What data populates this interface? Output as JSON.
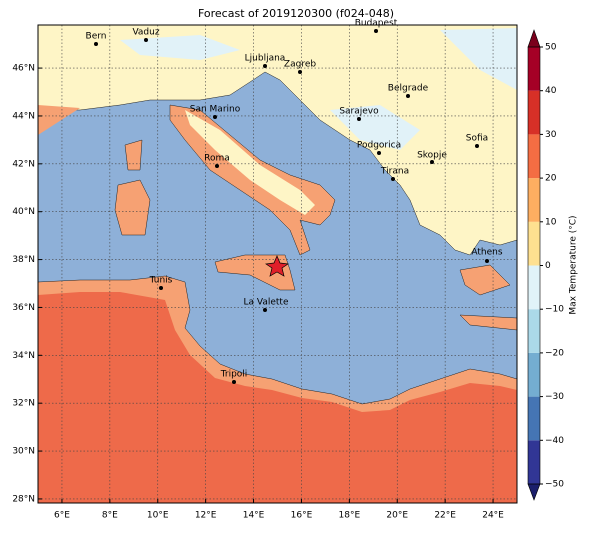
{
  "map": {
    "title": "Forecast of 2019120300 (f024-048)",
    "lon_lim": [
      5,
      25
    ],
    "lat_lim": [
      27.83,
      47.8
    ],
    "lon_ticks": [
      {
        "value": 6,
        "label": "6°E"
      },
      {
        "value": 8,
        "label": "8°E"
      },
      {
        "value": 10,
        "label": "10°E"
      },
      {
        "value": 12,
        "label": "12°E"
      },
      {
        "value": 14,
        "label": "14°E"
      },
      {
        "value": 16,
        "label": "16°E"
      },
      {
        "value": 18,
        "label": "18°E"
      },
      {
        "value": 20,
        "label": "20°E"
      },
      {
        "value": 22,
        "label": "22°E"
      },
      {
        "value": 24,
        "label": "24°E"
      }
    ],
    "lat_ticks": [
      {
        "value": 28,
        "label": "28°N"
      },
      {
        "value": 30,
        "label": "30°N"
      },
      {
        "value": 32,
        "label": "32°N"
      },
      {
        "value": 34,
        "label": "34°N"
      },
      {
        "value": 36,
        "label": "36°N"
      },
      {
        "value": 38,
        "label": "38°N"
      },
      {
        "value": 40,
        "label": "40°N"
      },
      {
        "value": 42,
        "label": "42°N"
      },
      {
        "value": 44,
        "label": "44°N"
      },
      {
        "value": 46,
        "label": "46°N"
      }
    ],
    "grid": true,
    "cities": [
      "Bern",
      "Vaduz",
      "Budapest",
      "Ljubljana",
      "Zagreb",
      "Belgrade",
      "San Marino",
      "Sarajevo",
      "Sofia",
      "Podgorica",
      "Skopje",
      "Roma",
      "Tirana",
      "Athens",
      "Tunis",
      "La Valette",
      "Tripoli"
    ]
  },
  "colorbar": {
    "label": "Max Temperature (°C)",
    "ticks": [
      {
        "value": -50,
        "label": "−50"
      },
      {
        "value": -40,
        "label": "−40"
      },
      {
        "value": -30,
        "label": "−30"
      },
      {
        "value": -20,
        "label": "−20"
      },
      {
        "value": -10,
        "label": "−10"
      },
      0,
      10,
      20,
      30,
      40,
      50
    ],
    "colors": [
      "#313695",
      "#4575b4",
      "#74add1",
      "#abd9e9",
      "#e0f3f8",
      "#fee090",
      "#fdae61",
      "#f46d43",
      "#d73027",
      "#a50026"
    ],
    "extend_colors": [
      "#1b1f6b",
      "#7a001c"
    ]
  }
}
